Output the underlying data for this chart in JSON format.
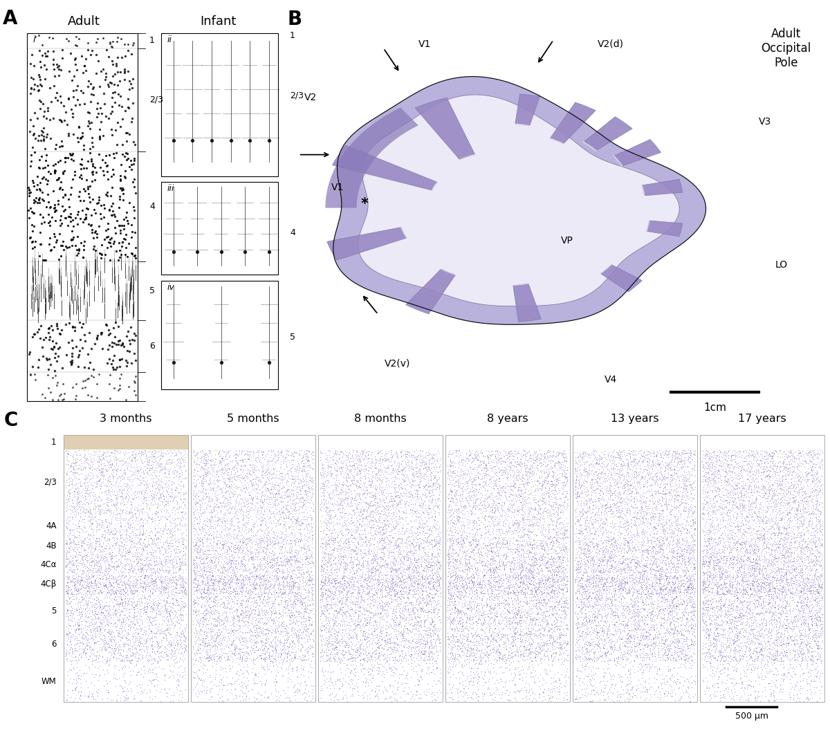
{
  "figure_width": 12.0,
  "figure_height": 10.57,
  "bg_color": "#ffffff",
  "panel_A_label": "A",
  "panel_A_title_adult": "Adult",
  "panel_A_title_infant": "Infant",
  "panel_A_adult_layers": [
    "1",
    "2/3",
    "4",
    "5",
    "6"
  ],
  "panel_A_infant_layer_labels": [
    "1",
    "2/3",
    "4",
    "5"
  ],
  "panel_A_roman": [
    "i",
    "ii",
    "iii",
    "iv"
  ],
  "panel_B_label": "B",
  "panel_B_title": "Adult\nOccipital\nPole",
  "panel_B_scalebar": "1cm",
  "panel_C_label": "C",
  "panel_C_titles": [
    "3 months",
    "5 months",
    "8 months",
    "8 years",
    "13 years",
    "17 years"
  ],
  "panel_C_layer_labels": [
    "1",
    "2/3",
    "4A",
    "4B",
    "4Cα",
    "4Cβ",
    "5",
    "6",
    "WM"
  ],
  "panel_C_scalebar": "500 μm",
  "font_color": "#000000",
  "panel_label_fontsize": 20,
  "title_fontsize": 13,
  "nissl_purple_dark": "#7060a0",
  "nissl_purple_mid": "#9888c0",
  "nissl_purple_light": "#c8c0e0",
  "nissl_bg_light": "#f0eef8",
  "nissl_bg_very_light": "#f8f6fc",
  "brain_dark": "#9080c0",
  "brain_mid": "#b0a8d8",
  "brain_light": "#d8d4ec",
  "brain_very_light": "#eceaf6"
}
